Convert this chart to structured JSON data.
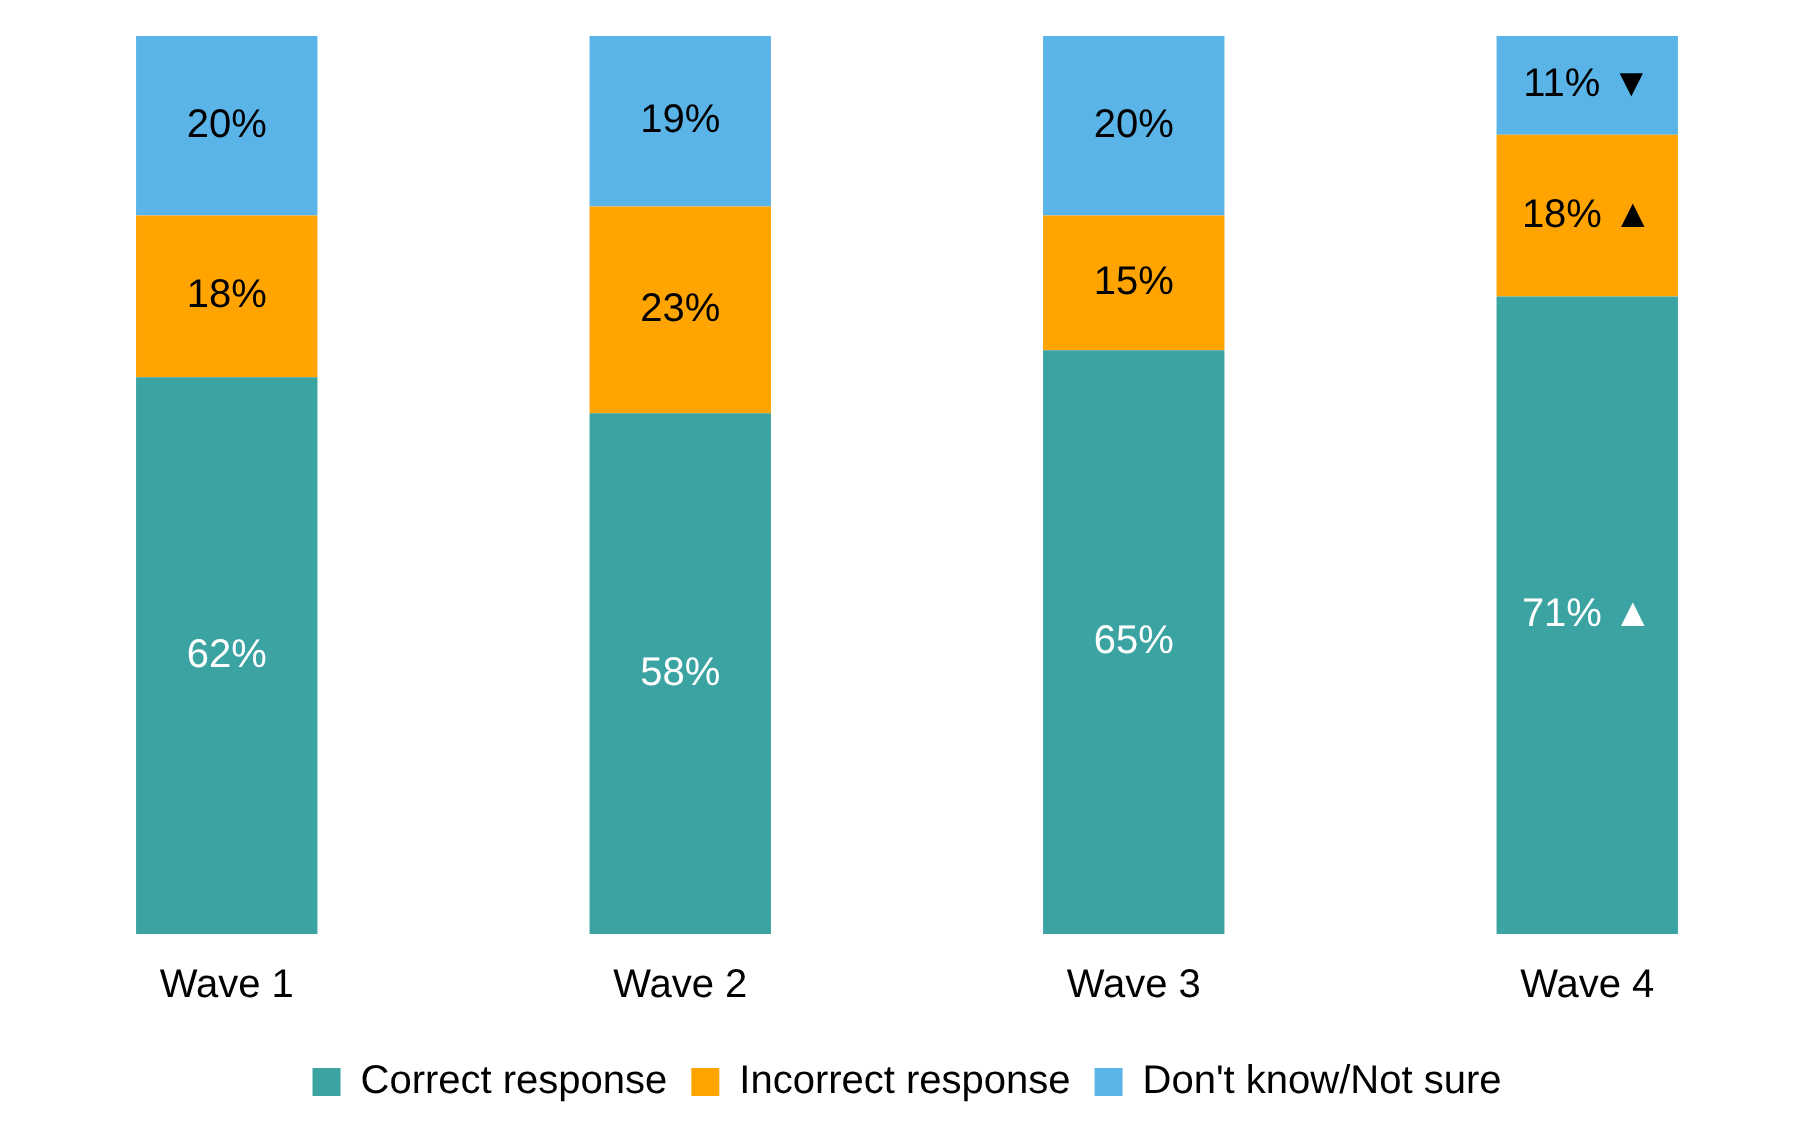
{
  "chart_data": {
    "type": "bar",
    "stacked": true,
    "categories": [
      "Wave 1",
      "Wave 2",
      "Wave 3",
      "Wave 4"
    ],
    "ylim": [
      0,
      100
    ],
    "tick_labels": "x",
    "grid": false,
    "legend": "bottom",
    "data_labels": true,
    "series": [
      {
        "name": "Correct response",
        "color": "#3ca3a3",
        "values": [
          62,
          58,
          65,
          71
        ],
        "value_labels": [
          "62%",
          "58%",
          "65%",
          "71% ▲"
        ]
      },
      {
        "name": "Incorrect response",
        "color": "#ffa400",
        "values": [
          18,
          23,
          15,
          18
        ],
        "value_labels": [
          "18%",
          "23%",
          "15%",
          "18% ▲"
        ]
      },
      {
        "name": "Don't know/Not sure",
        "color": "#5bb4e8",
        "values": [
          20,
          19,
          20,
          11
        ],
        "value_labels": [
          "20%",
          "19%",
          "20%",
          "11% ▼"
        ]
      }
    ]
  }
}
